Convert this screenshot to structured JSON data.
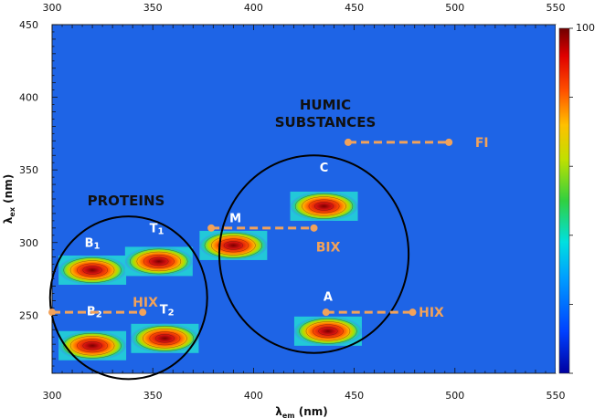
{
  "chart_data": {
    "type": "heatmap",
    "xlabel": {
      "main": "λ",
      "sub": "em",
      "tail": " (nm)"
    },
    "ylabel": {
      "main": "λ",
      "sub": "ex",
      "tail": " (nm)"
    },
    "xlim": [
      300,
      550
    ],
    "ylim": [
      210,
      450
    ],
    "x_ticks": [
      "300",
      "350",
      "400",
      "450",
      "500",
      "550"
    ],
    "y_ticks": [
      "250",
      "300",
      "350",
      "400",
      "450"
    ],
    "colorbar": {
      "min": 0,
      "max": 100,
      "ticks": [
        "100"
      ]
    },
    "background_color": "#1e64e6",
    "accent_color": "#f2a25a",
    "regions": [
      {
        "label": "PROTEINS",
        "label_lines": [
          "PROTEINS"
        ],
        "center": [
          338,
          262
        ],
        "radius_x": 39,
        "radius_y": 56
      },
      {
        "label": "HUMIC SUBSTANCES",
        "label_lines": [
          "HUMIC",
          "SUBSTANCES"
        ],
        "center": [
          430,
          292
        ],
        "radius_x": 47,
        "radius_y": 68
      }
    ],
    "peaks": [
      {
        "label": "B",
        "sub": "1",
        "x": 320,
        "y": 281,
        "label_x": 320,
        "label_y": 297
      },
      {
        "label": "T",
        "sub": "1",
        "x": 353,
        "y": 287,
        "label_x": 352,
        "label_y": 307
      },
      {
        "label": "B",
        "sub": "2",
        "x": 320,
        "y": 229,
        "label_x": 321,
        "label_y": 250
      },
      {
        "label": "T",
        "sub": "2",
        "x": 356,
        "y": 234,
        "label_x": 357,
        "label_y": 251
      },
      {
        "label": "M",
        "x": 390,
        "y": 298,
        "label_x": 391,
        "label_y": 314
      },
      {
        "label": "C",
        "x": 435,
        "y": 325,
        "label_x": 435,
        "label_y": 349
      },
      {
        "label": "A",
        "x": 437,
        "y": 239,
        "label_x": 437,
        "label_y": 260
      }
    ],
    "indices": [
      {
        "label": "FI",
        "x1": 447,
        "x2": 497,
        "y": 369,
        "label_x": 510,
        "label_y": 369
      },
      {
        "label": "BIX",
        "x1": 379,
        "x2": 430,
        "y": 310,
        "label_x": 431,
        "label_y": 297
      },
      {
        "label": "HIX",
        "x1": 300,
        "x2": 345,
        "y": 252,
        "label_x": 340,
        "label_y": 259
      },
      {
        "label": "HIX",
        "x1": 436,
        "x2": 479,
        "y": 252,
        "label_x": 482,
        "label_y": 252
      }
    ]
  }
}
